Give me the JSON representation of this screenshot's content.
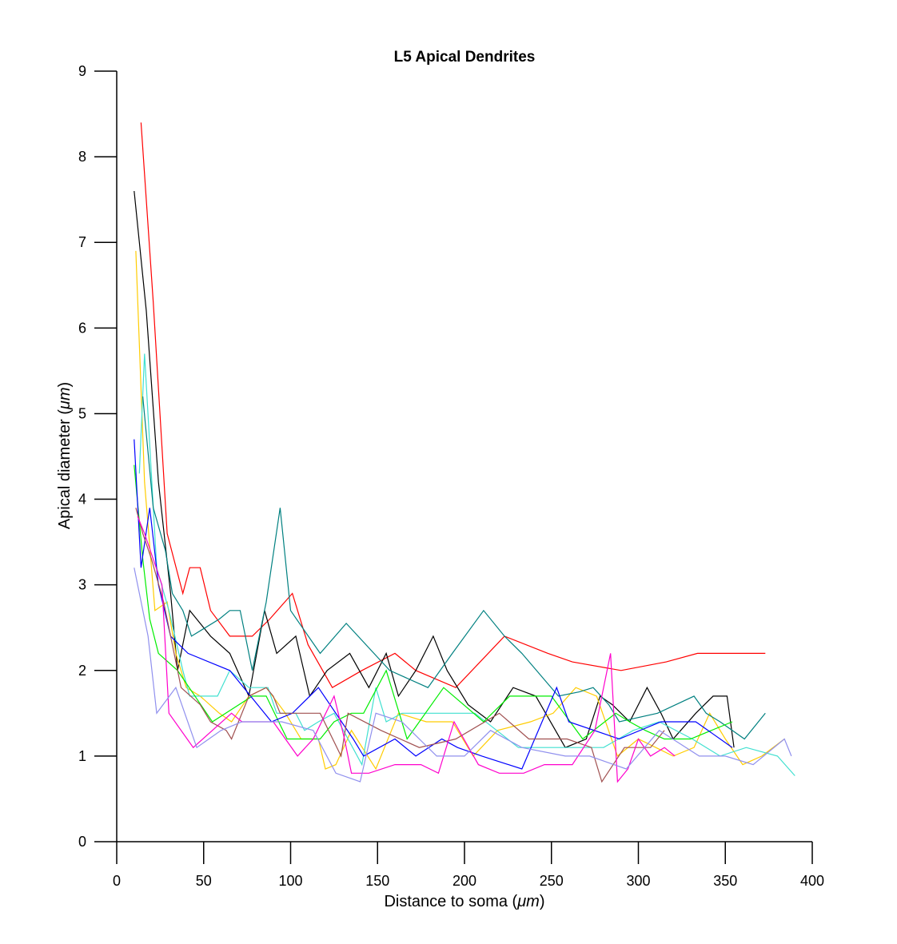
{
  "chart_data": {
    "type": "line",
    "title": "L5 Apical Dendrites",
    "xlabel_prefix": "Distance to soma (",
    "xlabel_unit": "μm",
    "xlabel_suffix": ")",
    "ylabel_prefix": "Apical diameter (",
    "ylabel_unit": "μm",
    "ylabel_suffix": ")",
    "xlim": [
      0,
      400
    ],
    "ylim": [
      0,
      9
    ],
    "xticks": [
      "0",
      "50",
      "100",
      "150",
      "200",
      "250",
      "300",
      "350",
      "400"
    ],
    "yticks": [
      "0",
      "1",
      "2",
      "3",
      "4",
      "5",
      "6",
      "7",
      "8",
      "9"
    ],
    "grid": false,
    "legend": "none",
    "series": [
      {
        "color": "#ff0000",
        "x": [
          14,
          21,
          29,
          38,
          42,
          48,
          54,
          65,
          78,
          88,
          101,
          110,
          124,
          141,
          160,
          172,
          195,
          223,
          248,
          262,
          290,
          316,
          334,
          356,
          373
        ],
        "y": [
          8.4,
          6.3,
          3.6,
          2.9,
          3.2,
          3.2,
          2.7,
          2.4,
          2.4,
          2.6,
          2.9,
          2.3,
          1.8,
          2.0,
          2.2,
          2.0,
          1.8,
          2.4,
          2.2,
          2.1,
          2.0,
          2.1,
          2.2,
          2.2,
          2.2
        ]
      },
      {
        "color": "#000000",
        "x": [
          10,
          17,
          24,
          31,
          35,
          42,
          54,
          65,
          76,
          85,
          92,
          103,
          111,
          121,
          134,
          145,
          155,
          162,
          172,
          182,
          190,
          202,
          215,
          228,
          241,
          258,
          270,
          278,
          285,
          295,
          305,
          313,
          320,
          333,
          343,
          351,
          355
        ],
        "y": [
          7.6,
          6.2,
          4.2,
          2.9,
          2.0,
          2.7,
          2.4,
          2.2,
          1.7,
          2.7,
          2.2,
          2.4,
          1.7,
          2.0,
          2.2,
          1.8,
          2.2,
          1.7,
          2.0,
          2.4,
          2.0,
          1.6,
          1.4,
          1.8,
          1.7,
          1.1,
          1.2,
          1.7,
          1.6,
          1.4,
          1.8,
          1.5,
          1.2,
          1.5,
          1.7,
          1.7,
          1.1
        ]
      },
      {
        "color": "#ffcc00",
        "x": [
          11,
          16,
          22,
          29,
          34,
          40,
          48,
          59,
          66,
          76,
          86,
          97,
          106,
          116,
          120,
          126,
          135,
          149,
          162,
          178,
          193,
          205,
          219,
          238,
          251,
          264,
          276,
          288,
          300,
          310,
          320,
          332,
          341,
          350,
          360,
          371,
          384
        ],
        "y": [
          6.9,
          4.2,
          2.7,
          2.8,
          2.2,
          1.8,
          1.7,
          1.5,
          1.4,
          1.7,
          1.8,
          1.5,
          1.2,
          1.2,
          0.85,
          0.9,
          1.3,
          0.85,
          1.5,
          1.4,
          1.4,
          1.0,
          1.3,
          1.4,
          1.5,
          1.8,
          1.7,
          1.0,
          1.2,
          1.1,
          1.0,
          1.1,
          1.5,
          1.2,
          0.9,
          1.0,
          1.2
        ]
      },
      {
        "color": "#40e0d0",
        "x": [
          13,
          16,
          23,
          30,
          38,
          42,
          52,
          58,
          65,
          76,
          87,
          92,
          103,
          108,
          116,
          125,
          141,
          149,
          155,
          164,
          176,
          191,
          206,
          231,
          248,
          264,
          280,
          297,
          312,
          331,
          347,
          362,
          380,
          390
        ],
        "y": [
          4.3,
          5.7,
          3.2,
          2.7,
          2.0,
          1.7,
          1.7,
          1.7,
          2.0,
          1.8,
          1.8,
          1.5,
          1.5,
          1.3,
          1.4,
          1.5,
          0.9,
          1.8,
          1.4,
          1.5,
          1.5,
          1.5,
          1.5,
          1.1,
          1.1,
          1.1,
          1.1,
          1.3,
          1.4,
          1.2,
          1.0,
          1.1,
          1.0,
          0.77
        ]
      },
      {
        "color": "#008080",
        "x": [
          15,
          21,
          28,
          32,
          38,
          43,
          59,
          65,
          71,
          78,
          86,
          94,
          100,
          117,
          132,
          157,
          179,
          193,
          211,
          223,
          233,
          254,
          266,
          274,
          283,
          289,
          311,
          332,
          339,
          347,
          361,
          373
        ],
        "y": [
          5.2,
          3.9,
          3.4,
          2.9,
          2.7,
          2.4,
          2.6,
          2.7,
          2.7,
          2.0,
          2.8,
          3.9,
          2.7,
          2.2,
          2.55,
          2.0,
          1.8,
          2.2,
          2.7,
          2.4,
          2.2,
          1.7,
          1.75,
          1.8,
          1.6,
          1.4,
          1.5,
          1.7,
          1.5,
          1.4,
          1.2,
          1.5
        ]
      },
      {
        "color": "#00ee00",
        "x": [
          10,
          15,
          19,
          24,
          35,
          45,
          55,
          78,
          86,
          98,
          106,
          117,
          125,
          135,
          142,
          155,
          167,
          188,
          211,
          226,
          250,
          268,
          287,
          295,
          304,
          315,
          330,
          354
        ],
        "y": [
          4.4,
          3.3,
          2.6,
          2.2,
          2.0,
          1.7,
          1.4,
          1.7,
          1.7,
          1.2,
          1.2,
          1.2,
          1.4,
          1.5,
          1.5,
          2.0,
          1.2,
          1.8,
          1.4,
          1.7,
          1.7,
          1.2,
          1.5,
          1.4,
          1.3,
          1.2,
          1.2,
          1.4
        ]
      },
      {
        "color": "#0000ff",
        "x": [
          10,
          14,
          19,
          24,
          31,
          41,
          65,
          89,
          101,
          116,
          136,
          142,
          160,
          172,
          187,
          196,
          210,
          233,
          253,
          260,
          289,
          313,
          333,
          354
        ],
        "y": [
          4.7,
          3.2,
          3.9,
          3.0,
          2.4,
          2.2,
          2.0,
          1.4,
          1.5,
          1.8,
          1.2,
          1.0,
          1.2,
          1.0,
          1.2,
          1.1,
          1.0,
          0.85,
          1.8,
          1.4,
          1.2,
          1.4,
          1.4,
          1.1
        ]
      },
      {
        "color": "#a05050",
        "x": [
          11,
          15,
          20,
          27,
          37,
          48,
          54,
          63,
          66,
          76,
          86,
          90,
          94,
          111,
          117,
          129,
          133,
          152,
          174,
          195,
          220,
          237,
          259,
          273,
          279,
          292,
          307,
          315
        ],
        "y": [
          3.9,
          3.6,
          3.3,
          2.8,
          1.8,
          1.6,
          1.4,
          1.3,
          1.2,
          1.7,
          1.8,
          1.7,
          1.5,
          1.5,
          1.5,
          1.0,
          1.5,
          1.3,
          1.1,
          1.2,
          1.5,
          1.2,
          1.2,
          1.1,
          0.7,
          1.1,
          1.1,
          1.3
        ]
      },
      {
        "color": "#ff00cc",
        "x": [
          12,
          16,
          26,
          30,
          44,
          55,
          66,
          72,
          90,
          104,
          113,
          125,
          131,
          135,
          145,
          160,
          175,
          185,
          194,
          208,
          220,
          234,
          246,
          262,
          275,
          284,
          288,
          294,
          300,
          307,
          315,
          321
        ],
        "y": [
          3.8,
          3.6,
          3.0,
          1.5,
          1.1,
          1.3,
          1.5,
          1.4,
          1.4,
          1.0,
          1.2,
          1.7,
          1.2,
          0.8,
          0.8,
          0.9,
          0.9,
          0.8,
          1.4,
          0.9,
          0.8,
          0.8,
          0.9,
          0.9,
          1.3,
          2.2,
          0.7,
          0.85,
          1.2,
          1.0,
          1.1,
          1.0
        ]
      },
      {
        "color": "#9090ee",
        "x": [
          10,
          18,
          23,
          34,
          46,
          60,
          72,
          95,
          113,
          126,
          140,
          149,
          164,
          184,
          200,
          215,
          233,
          258,
          272,
          293,
          312,
          335,
          350,
          366,
          384,
          388
        ],
        "y": [
          3.2,
          2.4,
          1.5,
          1.8,
          1.1,
          1.3,
          1.4,
          1.4,
          1.3,
          0.8,
          0.7,
          1.5,
          1.4,
          1.0,
          1.0,
          1.3,
          1.1,
          1.0,
          1.0,
          0.85,
          1.3,
          1.0,
          1.0,
          0.9,
          1.2,
          1.0
        ]
      }
    ]
  }
}
